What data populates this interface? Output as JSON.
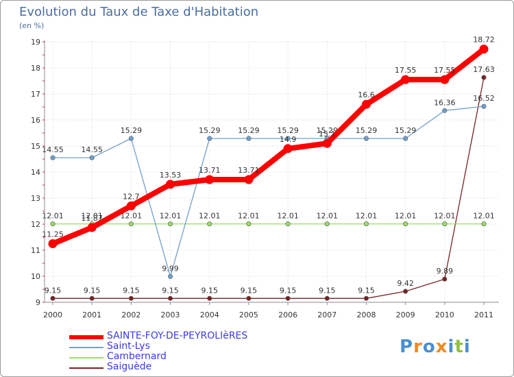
{
  "header": {
    "title": "Evolution du Taux de Taxe d'Habitation",
    "unit": "(en %)"
  },
  "logo": {
    "text": "Proxiti"
  },
  "chart_data": {
    "type": "line",
    "title": "Evolution du Taux de Taxe d'Habitation",
    "ylabel": "(en %)",
    "xlabel": "",
    "x": [
      "2000",
      "2001",
      "2002",
      "2003",
      "2004",
      "2005",
      "2006",
      "2007",
      "2008",
      "2009",
      "2010",
      "2011"
    ],
    "ylim": [
      9,
      19
    ],
    "yticks": [
      9,
      10,
      11,
      12,
      13,
      14,
      15,
      16,
      17,
      18,
      19
    ],
    "grid": true,
    "legend_position": "bottom",
    "series": [
      {
        "name": "SAINTE-FOY-DE-PEYROLIèRES",
        "color": "#ff0000",
        "values": [
          11.25,
          11.87,
          12.7,
          13.53,
          13.71,
          13.71,
          14.9,
          15.1,
          16.6,
          17.55,
          17.55,
          18.72
        ],
        "labels": [
          "11.25",
          "11.87",
          "12.7",
          "13.53",
          "13.71",
          "13.71",
          "14.9",
          "15.1",
          "16.6",
          "17.55",
          "17.55",
          "18.72"
        ]
      },
      {
        "name": "Saint-Lys",
        "color": "#6fa0d0",
        "values": [
          14.55,
          14.55,
          15.29,
          9.99,
          15.29,
          15.29,
          15.29,
          15.29,
          15.29,
          15.29,
          16.36,
          16.52
        ],
        "labels": [
          "14.55",
          "14.55",
          "15.29",
          "9.99",
          "15.29",
          "15.29",
          "15.29",
          "15.29",
          "15.29",
          "15.29",
          "16.36",
          "16.52"
        ]
      },
      {
        "name": "Cambernard",
        "color": "#99dd66",
        "values": [
          12.01,
          12.01,
          12.01,
          12.01,
          12.01,
          12.01,
          12.01,
          12.01,
          12.01,
          12.01,
          12.01,
          12.01
        ],
        "labels": [
          "12.01",
          "12.01",
          "12.01",
          "12.01",
          "12.01",
          "12.01",
          "12.01",
          "12.01",
          "12.01",
          "12.01",
          "12.01",
          "12.01"
        ]
      },
      {
        "name": "Saiguède",
        "color": "#7a2222",
        "values": [
          9.15,
          9.15,
          9.15,
          9.15,
          9.15,
          9.15,
          9.15,
          9.15,
          9.15,
          9.42,
          9.89,
          17.63
        ],
        "labels": [
          "9.15",
          "9.15",
          "9.15",
          "9.15",
          "9.15",
          "9.15",
          "9.15",
          "9.15",
          "9.15",
          "9.42",
          "9.89",
          "17.63"
        ]
      }
    ]
  }
}
